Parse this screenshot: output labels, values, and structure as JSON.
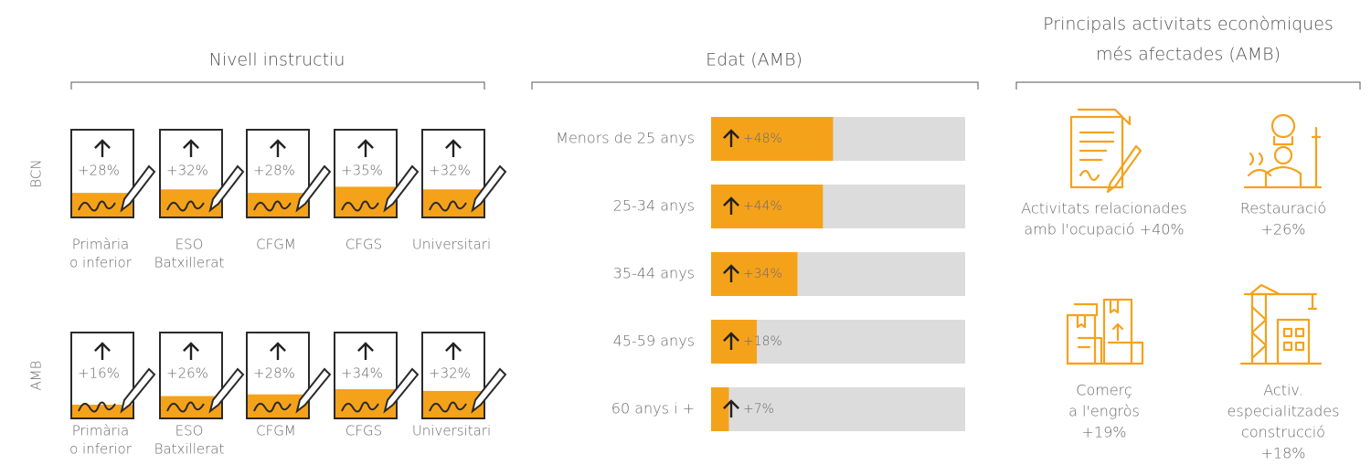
{
  "education": {
    "title": "Nivell instructiu",
    "categories": [
      [
        "Primària",
        "o inferior"
      ],
      [
        "ESO",
        "Batxillerat"
      ],
      [
        "CFGM"
      ],
      [
        "CFGS"
      ],
      [
        "Universitari"
      ]
    ],
    "rows": [
      {
        "name": "BCN",
        "values": [
          28,
          32,
          28,
          35,
          32
        ],
        "value_labels": [
          "+28%",
          "+32%",
          "+28%",
          "+35%",
          "+32%"
        ]
      },
      {
        "name": "AMB",
        "values": [
          16,
          26,
          28,
          34,
          32
        ],
        "value_labels": [
          "+16%",
          "+26%",
          "+28%",
          "+34%",
          "+32%"
        ]
      }
    ]
  },
  "age": {
    "title": "Edat (AMB)",
    "categories": [
      "Menors de 25 anys",
      "25-34 anys",
      "35-44 anys",
      "45-59 anys",
      "60 anys i +"
    ],
    "values": [
      48,
      44,
      34,
      18,
      7
    ],
    "value_labels": [
      "+48%",
      "+44%",
      "+34%",
      "+18%",
      "+7%"
    ],
    "xlim": [
      0,
      100
    ]
  },
  "activities": {
    "title": [
      "Principals activitats econòmiques",
      "més afectades (AMB)"
    ],
    "items": [
      {
        "label": [
          "Activitats relacionades",
          "amb l'ocupació +40%"
        ]
      },
      {
        "label": [
          "Restauració",
          "+26%"
        ]
      },
      {
        "label": [
          "Comerç",
          "a l'engròs",
          "+19%"
        ]
      },
      {
        "label": [
          "Activ.",
          "especialitzades",
          "construcció",
          "+18%"
        ]
      }
    ]
  }
}
